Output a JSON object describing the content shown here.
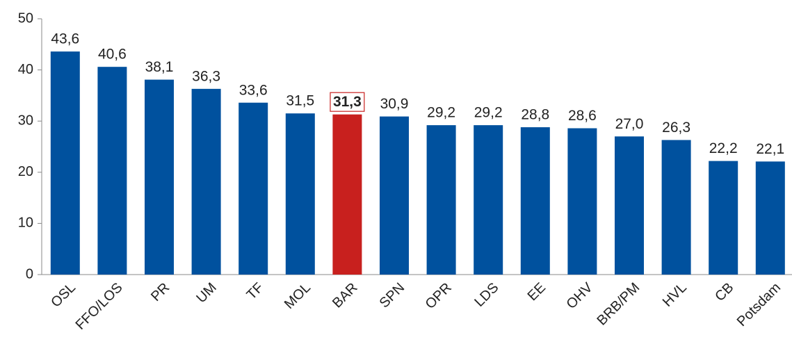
{
  "chart_data": {
    "type": "bar",
    "categories": [
      "OSL",
      "FFO/LOS",
      "PR",
      "UM",
      "TF",
      "MOL",
      "BAR",
      "SPN",
      "OPR",
      "LDS",
      "EE",
      "OHV",
      "BRB/PM",
      "HVL",
      "CB",
      "Potsdam"
    ],
    "values": [
      43.6,
      40.6,
      38.1,
      36.3,
      33.6,
      31.5,
      31.3,
      30.9,
      29.2,
      29.2,
      28.8,
      28.6,
      27.0,
      26.3,
      22.2,
      22.1
    ],
    "value_labels": [
      "43,6",
      "40,6",
      "38,1",
      "36,3",
      "33,6",
      "31,5",
      "31,3",
      "30,9",
      "29,2",
      "29,2",
      "28,8",
      "28,6",
      "27,0",
      "26,3",
      "22,2",
      "22,1"
    ],
    "color": "#00519e",
    "highlight": "BAR",
    "highlight_color": "#c8201e",
    "ylim": [
      0,
      50
    ],
    "yticks": [
      0,
      10,
      20,
      30,
      40,
      50
    ],
    "grid": false
  }
}
